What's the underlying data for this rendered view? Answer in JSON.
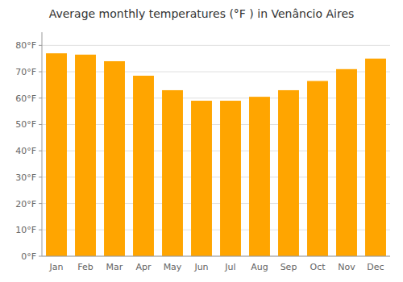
{
  "chart_data": {
    "type": "bar",
    "title": "Average monthly temperatures (°F ) in Venâncio Aires",
    "categories": [
      "Jan",
      "Feb",
      "Mar",
      "Apr",
      "May",
      "Jun",
      "Jul",
      "Aug",
      "Sep",
      "Oct",
      "Nov",
      "Dec"
    ],
    "values": [
      77,
      76.5,
      74,
      68.5,
      63,
      59,
      59,
      60.5,
      63,
      66.5,
      71,
      75
    ],
    "color": "#FFA500",
    "ylim": [
      0,
      85
    ],
    "yticks": [
      {
        "value": 0,
        "label": "0°F"
      },
      {
        "value": 10,
        "label": "10°F"
      },
      {
        "value": 20,
        "label": "20°F"
      },
      {
        "value": 30,
        "label": "30°F"
      },
      {
        "value": 40,
        "label": "40°F"
      },
      {
        "value": 50,
        "label": "50°F"
      },
      {
        "value": 60,
        "label": "60°F"
      },
      {
        "value": 70,
        "label": "70°F"
      },
      {
        "value": 80,
        "label": "80°F"
      }
    ],
    "grid": true
  }
}
